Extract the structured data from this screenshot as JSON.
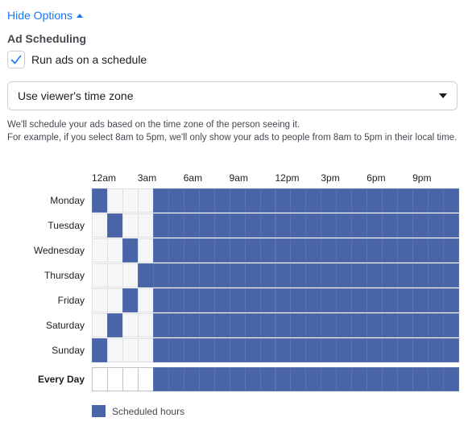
{
  "hide_options": {
    "label": "Hide Options"
  },
  "ad_scheduling": {
    "title": "Ad Scheduling",
    "checkbox_label": "Run ads on a schedule",
    "checked": true
  },
  "timezone_select": {
    "value": "Use viewer's time zone"
  },
  "description": {
    "line1": "We'll schedule your ads based on the time zone of the person seeing it.",
    "line2": "For example, if you select 8am to 5pm, we'll only show your ads to people from 8am to 5pm in their local time."
  },
  "schedule": {
    "hour_labels": [
      "12am",
      "3am",
      "6am",
      "9am",
      "12pm",
      "3pm",
      "6pm",
      "9pm"
    ],
    "days": [
      {
        "label": "Monday",
        "on": [
          0,
          4,
          5,
          6,
          7,
          8,
          9,
          10,
          11,
          12,
          13,
          14,
          15,
          16,
          17,
          18,
          19,
          20,
          21,
          22,
          23
        ]
      },
      {
        "label": "Tuesday",
        "on": [
          1,
          4,
          5,
          6,
          7,
          8,
          9,
          10,
          11,
          12,
          13,
          14,
          15,
          16,
          17,
          18,
          19,
          20,
          21,
          22,
          23
        ]
      },
      {
        "label": "Wednesday",
        "on": [
          2,
          4,
          5,
          6,
          7,
          8,
          9,
          10,
          11,
          12,
          13,
          14,
          15,
          16,
          17,
          18,
          19,
          20,
          21,
          22,
          23
        ]
      },
      {
        "label": "Thursday",
        "on": [
          3,
          4,
          5,
          6,
          7,
          8,
          9,
          10,
          11,
          12,
          13,
          14,
          15,
          16,
          17,
          18,
          19,
          20,
          21,
          22,
          23
        ]
      },
      {
        "label": "Friday",
        "on": [
          2,
          4,
          5,
          6,
          7,
          8,
          9,
          10,
          11,
          12,
          13,
          14,
          15,
          16,
          17,
          18,
          19,
          20,
          21,
          22,
          23
        ]
      },
      {
        "label": "Saturday",
        "on": [
          1,
          4,
          5,
          6,
          7,
          8,
          9,
          10,
          11,
          12,
          13,
          14,
          15,
          16,
          17,
          18,
          19,
          20,
          21,
          22,
          23
        ]
      },
      {
        "label": "Sunday",
        "on": [
          0,
          4,
          5,
          6,
          7,
          8,
          9,
          10,
          11,
          12,
          13,
          14,
          15,
          16,
          17,
          18,
          19,
          20,
          21,
          22,
          23
        ]
      }
    ],
    "every_day": {
      "label": "Every Day",
      "on": [
        4,
        5,
        6,
        7,
        8,
        9,
        10,
        11,
        12,
        13,
        14,
        15,
        16,
        17,
        18,
        19,
        20,
        21,
        22,
        23
      ]
    },
    "accent_color": "#4a64a8"
  },
  "legend": {
    "label": "Scheduled hours"
  }
}
